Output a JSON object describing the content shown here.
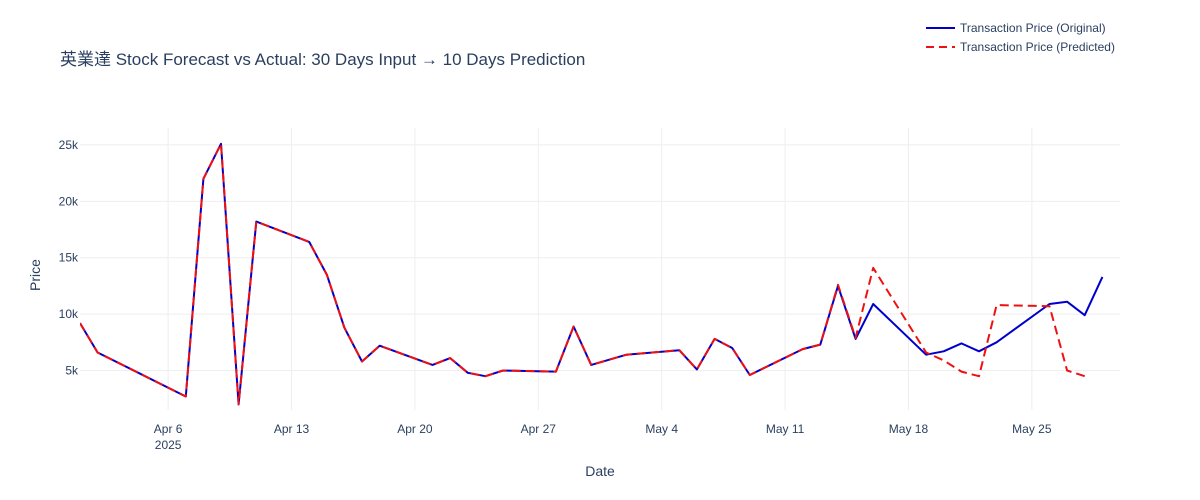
{
  "chart_data": {
    "type": "line",
    "title": "英業達 Stock Forecast vs Actual: 30 Days Input → 10 Days Prediction",
    "xlabel": "Date",
    "ylabel": "Price",
    "xlim": [
      "2025-04-01",
      "2025-05-30"
    ],
    "ylim": [
      1500,
      26500
    ],
    "x_ticks": [
      {
        "date": "2025-04-06",
        "label": "Apr 6",
        "sublabel": "2025"
      },
      {
        "date": "2025-04-13",
        "label": "Apr 13",
        "sublabel": ""
      },
      {
        "date": "2025-04-20",
        "label": "Apr 20",
        "sublabel": ""
      },
      {
        "date": "2025-04-27",
        "label": "Apr 27",
        "sublabel": ""
      },
      {
        "date": "2025-05-04",
        "label": "May 4",
        "sublabel": ""
      },
      {
        "date": "2025-05-11",
        "label": "May 11",
        "sublabel": ""
      },
      {
        "date": "2025-05-18",
        "label": "May 18",
        "sublabel": ""
      },
      {
        "date": "2025-05-25",
        "label": "May 25",
        "sublabel": ""
      }
    ],
    "y_ticks": [
      {
        "value": 5000,
        "label": "5k"
      },
      {
        "value": 10000,
        "label": "10k"
      },
      {
        "value": 15000,
        "label": "15k"
      },
      {
        "value": 20000,
        "label": "20k"
      },
      {
        "value": 25000,
        "label": "25k"
      }
    ],
    "grid": true,
    "legend_position": "top-right",
    "series": [
      {
        "name": "Transaction Price (Original)",
        "color": "#0000cc",
        "dash": "solid",
        "points": [
          [
            "2025-04-01",
            9200
          ],
          [
            "2025-04-02",
            6600
          ],
          [
            "2025-04-07",
            2700
          ],
          [
            "2025-04-08",
            22000
          ],
          [
            "2025-04-09",
            25100
          ],
          [
            "2025-04-10",
            2000
          ],
          [
            "2025-04-11",
            18200
          ],
          [
            "2025-04-14",
            16400
          ],
          [
            "2025-04-15",
            13500
          ],
          [
            "2025-04-16",
            8800
          ],
          [
            "2025-04-17",
            5800
          ],
          [
            "2025-04-18",
            7200
          ],
          [
            "2025-04-21",
            5500
          ],
          [
            "2025-04-22",
            6100
          ],
          [
            "2025-04-23",
            4800
          ],
          [
            "2025-04-24",
            4500
          ],
          [
            "2025-04-25",
            5000
          ],
          [
            "2025-04-28",
            4900
          ],
          [
            "2025-04-29",
            8900
          ],
          [
            "2025-04-30",
            5500
          ],
          [
            "2025-05-02",
            6400
          ],
          [
            "2025-05-05",
            6800
          ],
          [
            "2025-05-06",
            5100
          ],
          [
            "2025-05-07",
            7800
          ],
          [
            "2025-05-08",
            7000
          ],
          [
            "2025-05-09",
            4600
          ],
          [
            "2025-05-12",
            6900
          ],
          [
            "2025-05-13",
            7300
          ],
          [
            "2025-05-14",
            12500
          ],
          [
            "2025-05-15",
            7800
          ],
          [
            "2025-05-16",
            10900
          ],
          [
            "2025-05-19",
            6400
          ],
          [
            "2025-05-20",
            6700
          ],
          [
            "2025-05-21",
            7400
          ],
          [
            "2025-05-22",
            6700
          ],
          [
            "2025-05-23",
            7500
          ],
          [
            "2025-05-26",
            10900
          ],
          [
            "2025-05-27",
            11100
          ],
          [
            "2025-05-28",
            9900
          ],
          [
            "2025-05-29",
            13300
          ]
        ]
      },
      {
        "name": "Transaction Price (Predicted)",
        "color": "#ee1111",
        "dash": "dashed",
        "points": [
          [
            "2025-04-01",
            9200
          ],
          [
            "2025-04-02",
            6600
          ],
          [
            "2025-04-07",
            2700
          ],
          [
            "2025-04-08",
            22000
          ],
          [
            "2025-04-09",
            25100
          ],
          [
            "2025-04-10",
            2000
          ],
          [
            "2025-04-11",
            18200
          ],
          [
            "2025-04-14",
            16400
          ],
          [
            "2025-04-15",
            13500
          ],
          [
            "2025-04-16",
            8800
          ],
          [
            "2025-04-17",
            5800
          ],
          [
            "2025-04-18",
            7200
          ],
          [
            "2025-04-21",
            5500
          ],
          [
            "2025-04-22",
            6100
          ],
          [
            "2025-04-23",
            4800
          ],
          [
            "2025-04-24",
            4500
          ],
          [
            "2025-04-25",
            5000
          ],
          [
            "2025-04-28",
            4900
          ],
          [
            "2025-04-29",
            8900
          ],
          [
            "2025-04-30",
            5500
          ],
          [
            "2025-05-02",
            6400
          ],
          [
            "2025-05-05",
            6800
          ],
          [
            "2025-05-06",
            5100
          ],
          [
            "2025-05-07",
            7800
          ],
          [
            "2025-05-08",
            7000
          ],
          [
            "2025-05-09",
            4600
          ],
          [
            "2025-05-12",
            6900
          ],
          [
            "2025-05-13",
            7300
          ],
          [
            "2025-05-14",
            12600
          ],
          [
            "2025-05-15",
            7900
          ],
          [
            "2025-05-16",
            14100
          ],
          [
            "2025-05-19",
            6600
          ],
          [
            "2025-05-20",
            5900
          ],
          [
            "2025-05-21",
            4900
          ],
          [
            "2025-05-22",
            4500
          ],
          [
            "2025-05-23",
            10800
          ],
          [
            "2025-05-26",
            10700
          ],
          [
            "2025-05-27",
            5000
          ],
          [
            "2025-05-28",
            4500
          ]
        ]
      }
    ]
  }
}
